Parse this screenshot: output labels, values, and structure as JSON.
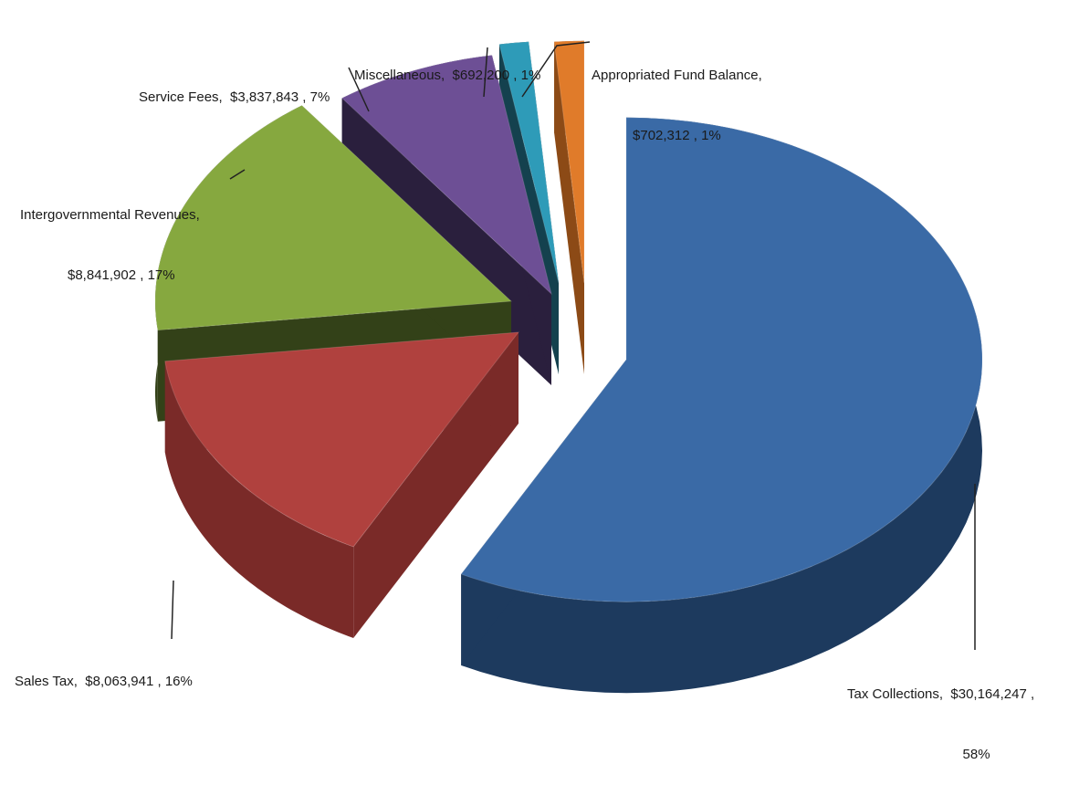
{
  "chart_data": {
    "type": "pie",
    "style": "3d-exploded",
    "slices": [
      {
        "label": "Tax Collections",
        "value": 30164247,
        "value_text": "$30,164,247",
        "percent": 58,
        "percent_text": "58%",
        "color": "#3a6aa6",
        "side_color": "#1d3a5e"
      },
      {
        "label": "Sales Tax",
        "value": 8063941,
        "value_text": "$8,063,941",
        "percent": 16,
        "percent_text": "16%",
        "color": "#b0413e",
        "side_color": "#7a2a28"
      },
      {
        "label": "Intergovernmental Revenues",
        "value": 8841902,
        "value_text": "$8,841,902",
        "percent": 17,
        "percent_text": "17%",
        "color": "#86a83f",
        "side_color": "#334118"
      },
      {
        "label": "Service Fees",
        "value": 3837843,
        "value_text": "$3,837,843",
        "percent": 7,
        "percent_text": "7%",
        "color": "#6d4f95",
        "side_color": "#2a1f3d"
      },
      {
        "label": "Miscellaneous",
        "value": 692200,
        "value_text": "$692,200",
        "percent": 1,
        "percent_text": "1%",
        "color": "#2e9bb8",
        "side_color": "#14414e"
      },
      {
        "label": "Appropriated Fund Balance",
        "value": 702312,
        "value_text": "$702,312",
        "percent": 1,
        "percent_text": "1%",
        "color": "#e07b2a",
        "side_color": "#8c4a16"
      }
    ]
  },
  "labels": {
    "tax_collections": {
      "line1": "Tax Collections,  $30,164,247 ,",
      "line2": "58%"
    },
    "sales_tax": {
      "line1": "Sales Tax,  $8,063,941 , 16%"
    },
    "intergovernmental": {
      "line1": "Intergovernmental Revenues,",
      "line2": "$8,841,902 , 17%"
    },
    "service_fees": {
      "line1": "Service Fees,  $3,837,843 , 7%"
    },
    "miscellaneous": {
      "line1": "Miscellaneous,  $692,200 , 1%"
    },
    "appropriated": {
      "line1": "Appropriated Fund Balance,",
      "line2": "$702,312 , 1%"
    }
  }
}
